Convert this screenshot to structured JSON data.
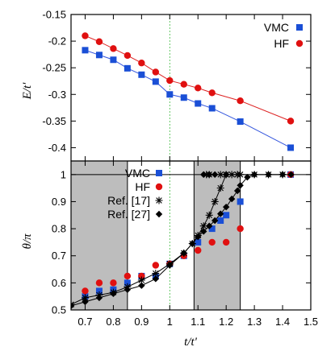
{
  "chart_data": [
    {
      "type": "line",
      "panel": "top",
      "ylabel": "E/t'",
      "xlim": [
        0.65,
        1.5
      ],
      "ylim": [
        -0.425,
        -0.15
      ],
      "yticks": [
        "-0.15",
        "-0.2",
        "-0.25",
        "-0.3",
        "-0.35",
        "-0.4"
      ],
      "ytick_values": [
        -0.15,
        -0.2,
        -0.25,
        -0.3,
        -0.35,
        -0.4
      ],
      "vline_x": 1.0,
      "legend_position": "top-right",
      "series": [
        {
          "name": "VMC",
          "color": "#1a4fd6",
          "line_color": "#3355dd",
          "marker": "square",
          "x": [
            0.7,
            0.75,
            0.8,
            0.85,
            0.9,
            0.95,
            1.0,
            1.05,
            1.1,
            1.15,
            1.25,
            1.4286
          ],
          "y": [
            -0.217,
            -0.226,
            -0.235,
            -0.251,
            -0.263,
            -0.276,
            -0.3,
            -0.306,
            -0.317,
            -0.326,
            -0.351,
            -0.4
          ]
        },
        {
          "name": "HF",
          "color": "#e01010",
          "line_color": "#dd2222",
          "marker": "circle",
          "x": [
            0.7,
            0.75,
            0.8,
            0.85,
            0.9,
            0.95,
            1.0,
            1.05,
            1.1,
            1.15,
            1.25,
            1.4286
          ],
          "y": [
            -0.19,
            -0.201,
            -0.214,
            -0.227,
            -0.241,
            -0.258,
            -0.274,
            -0.281,
            -0.288,
            -0.297,
            -0.312,
            -0.35
          ]
        }
      ]
    },
    {
      "type": "scatter",
      "panel": "bottom",
      "xlabel": "t/t'",
      "ylabel": "θ/π",
      "xlim": [
        0.65,
        1.5
      ],
      "ylim": [
        0.5,
        1.05
      ],
      "xticks": [
        "0.7",
        "0.8",
        "0.9",
        "1",
        "1.1",
        "1.2",
        "1.3",
        "1.4",
        "1.5"
      ],
      "xtick_values": [
        0.7,
        0.8,
        0.9,
        1.0,
        1.1,
        1.2,
        1.3,
        1.4,
        1.5
      ],
      "yticks": [
        "0.5",
        "0.6",
        "0.7",
        "0.8",
        "0.9",
        "1"
      ],
      "ytick_values": [
        0.5,
        0.6,
        0.7,
        0.8,
        0.9,
        1.0
      ],
      "shaded_regions": [
        [
          0.65,
          0.85
        ],
        [
          1.086,
          1.25
        ]
      ],
      "vline_x": 1.0,
      "hline_y": 1.0,
      "legend_position": "top-left",
      "series": [
        {
          "name": "VMC",
          "color": "#1a4fd6",
          "marker": "square",
          "x": [
            0.7,
            0.75,
            0.8,
            0.85,
            0.9,
            0.95,
            1.0,
            1.05,
            1.1,
            1.15,
            1.18,
            1.2,
            1.25,
            1.4286
          ],
          "y": [
            0.55,
            0.57,
            0.575,
            0.6,
            0.625,
            0.625,
            0.67,
            0.7,
            0.75,
            0.8,
            0.83,
            0.85,
            0.9,
            1.0
          ]
        },
        {
          "name": "HF",
          "color": "#e01010",
          "marker": "circle",
          "x": [
            0.7,
            0.75,
            0.8,
            0.85,
            0.9,
            0.95,
            1.0,
            1.05,
            1.1,
            1.15,
            1.2,
            1.25,
            1.4286
          ],
          "y": [
            0.57,
            0.6,
            0.6,
            0.625,
            0.625,
            0.665,
            0.67,
            0.7,
            0.72,
            0.75,
            0.75,
            0.8,
            1.0
          ]
        },
        {
          "name": "Ref. [17]",
          "color": "#000000",
          "marker": "star",
          "x": [
            0.65,
            0.7,
            0.75,
            0.8,
            0.85,
            0.9,
            0.95,
            1.0,
            1.05,
            1.08,
            1.1,
            1.12,
            1.14,
            1.16,
            1.18,
            1.2,
            1.22,
            1.24,
            1.25,
            1.3,
            1.35,
            1.4
          ],
          "y": [
            0.52,
            0.545,
            0.555,
            0.565,
            0.585,
            0.61,
            0.635,
            0.67,
            0.71,
            0.745,
            0.775,
            0.81,
            0.85,
            0.9,
            0.95,
            1.0,
            1.0,
            1.0,
            1.0,
            1.0,
            1.0,
            1.0
          ]
        },
        {
          "name": "Ref. [27]",
          "color": "#000000",
          "marker": "diamond",
          "x": [
            0.65,
            0.7,
            0.75,
            0.8,
            0.85,
            0.9,
            0.95,
            1.0,
            1.05,
            1.08,
            1.1,
            1.12,
            1.14,
            1.16,
            1.18,
            1.2,
            1.22,
            1.24,
            1.25,
            1.275,
            1.3,
            1.35,
            1.4,
            1.43
          ],
          "y": [
            0.515,
            0.53,
            0.545,
            0.56,
            0.575,
            0.59,
            0.615,
            0.665,
            0.71,
            0.745,
            0.77,
            0.79,
            0.81,
            0.83,
            0.855,
            0.88,
            0.91,
            0.94,
            0.96,
            0.99,
            1.0,
            1.0,
            1.0,
            1.0
          ]
        }
      ],
      "special_points": [
        {
          "series": "Ref. [17]",
          "x": [
            1.13,
            1.14,
            1.18
          ],
          "y": [
            1.0,
            1.0,
            1.0
          ]
        },
        {
          "series": "Ref. [27]",
          "x": [
            1.12,
            1.14,
            1.16,
            1.2
          ],
          "y": [
            1.0,
            1.0,
            1.0,
            1.0
          ]
        }
      ]
    }
  ]
}
